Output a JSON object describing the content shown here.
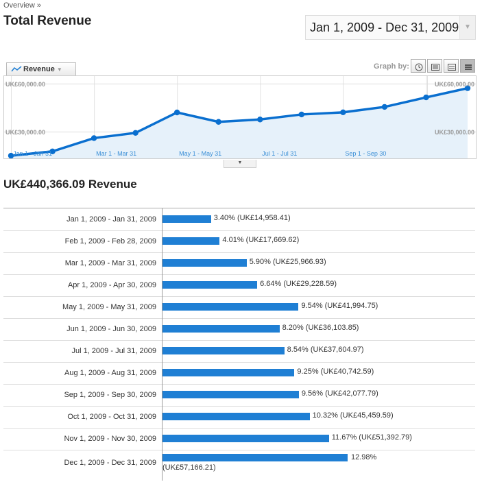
{
  "breadcrumb": "Overview »",
  "title": "Total Revenue",
  "date_range": "Jan 1, 2009 - Dec 31, 2009",
  "metric_tab": {
    "label": "Revenue"
  },
  "graph_by_label": "Graph by:",
  "graph_buttons": [
    "clock-icon",
    "list-icon",
    "compare-icon",
    "bars-icon"
  ],
  "colors": {
    "line": "#0a6fcf",
    "area": "#e6f1fa",
    "bar": "#1f7fd4"
  },
  "summary": "UK£440,366.09 Revenue",
  "chart_data": [
    {
      "type": "area",
      "x": [
        "Jan 1 - Jan 31",
        "Feb 1 - Feb 28",
        "Mar 1 - Mar 31",
        "Apr 1 - Apr 30",
        "May 1 - May 31",
        "Jun 1 - Jun 30",
        "Jul 1 - Jul 31",
        "Aug 1 - Aug 31",
        "Sep 1 - Sep 30",
        "Oct 1 - Oct 31",
        "Nov 1 - Nov 30",
        "Dec 1 - Dec 31"
      ],
      "x_tick_labels": [
        "Jan 1 - Jan 31",
        "Mar 1 - Mar 31",
        "May 1 - May 31",
        "Jul 1 - Jul 31",
        "Sep 1 - Sep 30"
      ],
      "y_tick_labels": [
        "UK£60,000.00",
        "UK£30,000.00"
      ],
      "series": [
        {
          "values": [
            14958.41,
            17669.62,
            25966.93,
            29228.59,
            41994.75,
            36103.85,
            37604.97,
            40742.59,
            42077.79,
            45459.59,
            51392.79,
            57166.21
          ]
        }
      ],
      "ylim": [
        0,
        60000
      ],
      "grid": true
    },
    {
      "type": "bar",
      "orientation": "horizontal",
      "categories": [
        "Jan 1, 2009 - Jan 31, 2009",
        "Feb 1, 2009 - Feb 28, 2009",
        "Mar 1, 2009 - Mar 31, 2009",
        "Apr 1, 2009 - Apr 30, 2009",
        "May 1, 2009 - May 31, 2009",
        "Jun 1, 2009 - Jun 30, 2009",
        "Jul 1, 2009 - Jul 31, 2009",
        "Aug 1, 2009 - Aug 31, 2009",
        "Sep 1, 2009 - Sep 30, 2009",
        "Oct 1, 2009 - Oct 31, 2009",
        "Nov 1, 2009 - Nov 30, 2009",
        "Dec 1, 2009 - Dec 31, 2009"
      ],
      "percents": [
        3.4,
        4.01,
        5.9,
        6.64,
        9.54,
        8.2,
        8.54,
        9.25,
        9.56,
        10.32,
        11.67,
        12.98
      ],
      "labels": [
        "3.40% (UK£14,958.41)",
        "4.01% (UK£17,669.62)",
        "5.90% (UK£25,966.93)",
        "6.64% (UK£29,228.59)",
        "9.54% (UK£41,994.75)",
        "8.20% (UK£36,103.85)",
        "8.54% (UK£37,604.97)",
        "9.25% (UK£40,742.59)",
        "9.56% (UK£42,077.79)",
        "10.32% (UK£45,459.59)",
        "11.67% (UK£51,392.79)",
        "12.98% (UK£57,166.21)"
      ]
    }
  ]
}
